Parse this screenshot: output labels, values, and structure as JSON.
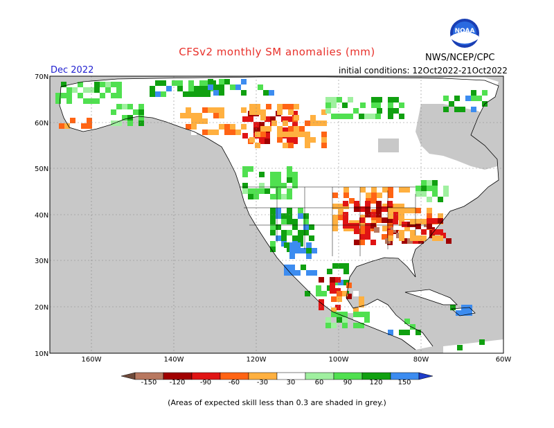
{
  "header": {
    "title": "CFSv2 monthly SM anomalies (mm)",
    "month": "Dec 2022",
    "initial_conditions": "initial conditions: 12Oct2022-21Oct2022",
    "agency": "NWS/NCEP/CPC",
    "logo_text": "NOAA"
  },
  "map": {
    "lat_labels": [
      "70N",
      "60N",
      "50N",
      "40N",
      "30N",
      "20N",
      "10N"
    ],
    "lon_labels": [
      "160W",
      "140W",
      "120W",
      "100W",
      "80W",
      "60W"
    ],
    "colors": {
      "ocean": "#c8c8c8",
      "land": "#ffffff",
      "low_skill": "#c8c8c8"
    }
  },
  "colorbar": {
    "tick_labels": [
      "-150",
      "-120",
      "-90",
      "-60",
      "-30",
      "30",
      "60",
      "90",
      "120",
      "150"
    ],
    "colors": [
      "#6e4a3a",
      "#b87860",
      "#a00000",
      "#e01414",
      "#ff6414",
      "#ffb040",
      "#ffffff",
      "#a0f0a0",
      "#50e050",
      "#10a010",
      "#3c8cf0",
      "#1e3cc8"
    ]
  },
  "footnote": "(Areas of expected skill less than 0.3 are shaded in grey.)"
}
